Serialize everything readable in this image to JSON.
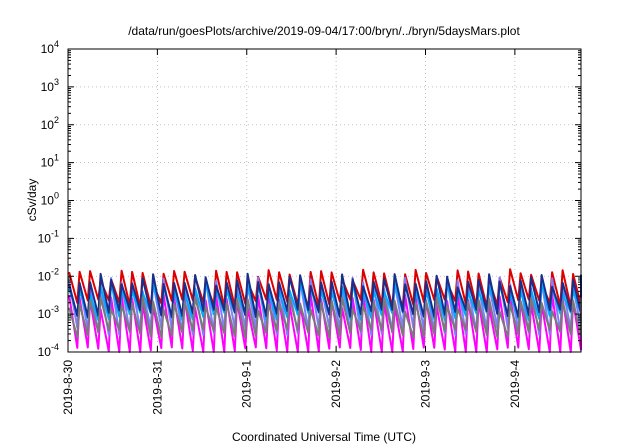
{
  "chart_data": {
    "type": "line",
    "title": "/data/run/goesPlots/archive/2019-09-04/17:00/bryn/../bryn/5daysMars.plot",
    "xlabel": "Coordinated Universal Time (UTC)",
    "ylabel": "cSv/day",
    "yscale": "log",
    "ylim": [
      0.0001,
      10000
    ],
    "xlim_days": [
      0,
      5.74
    ],
    "grid": true,
    "x_ticks": [
      {
        "label": "2019-8-30",
        "day": 0
      },
      {
        "label": "2019-8-31",
        "day": 1
      },
      {
        "label": "2019-9-1",
        "day": 2
      },
      {
        "label": "2019-9-2",
        "day": 3
      },
      {
        "label": "2019-9-3",
        "day": 4
      },
      {
        "label": "2019-9-4",
        "day": 5
      }
    ],
    "y_ticks": [
      {
        "base": "10",
        "exp": "-4",
        "value": 0.0001
      },
      {
        "base": "10",
        "exp": "-3",
        "value": 0.001
      },
      {
        "base": "10",
        "exp": "-2",
        "value": 0.01
      },
      {
        "base": "10",
        "exp": "-1",
        "value": 0.1
      },
      {
        "base": "10",
        "exp": "0",
        "value": 1
      },
      {
        "base": "10",
        "exp": "1",
        "value": 10
      },
      {
        "base": "10",
        "exp": "2",
        "value": 100
      },
      {
        "base": "10",
        "exp": "3",
        "value": 1000
      },
      {
        "base": "10",
        "exp": "4",
        "value": 10000
      }
    ],
    "cycle_period_days": 0.1175,
    "series": [
      {
        "color": "#dd0000",
        "peak": 0.014,
        "trough": 0.0022
      },
      {
        "color": "#ff00ff",
        "peak": 0.003,
        "trough": 0.00012
      },
      {
        "color": "#8080ff",
        "peak": 0.008,
        "trough": 0.0004
      },
      {
        "color": "#00aaff",
        "peak": 0.006,
        "trough": 0.001
      },
      {
        "color": "#1a2e8c",
        "peak": 0.01,
        "trough": 0.0012
      },
      {
        "color": "#7a7a7a",
        "peak": 0.0025,
        "trough": 0.00035
      }
    ]
  }
}
